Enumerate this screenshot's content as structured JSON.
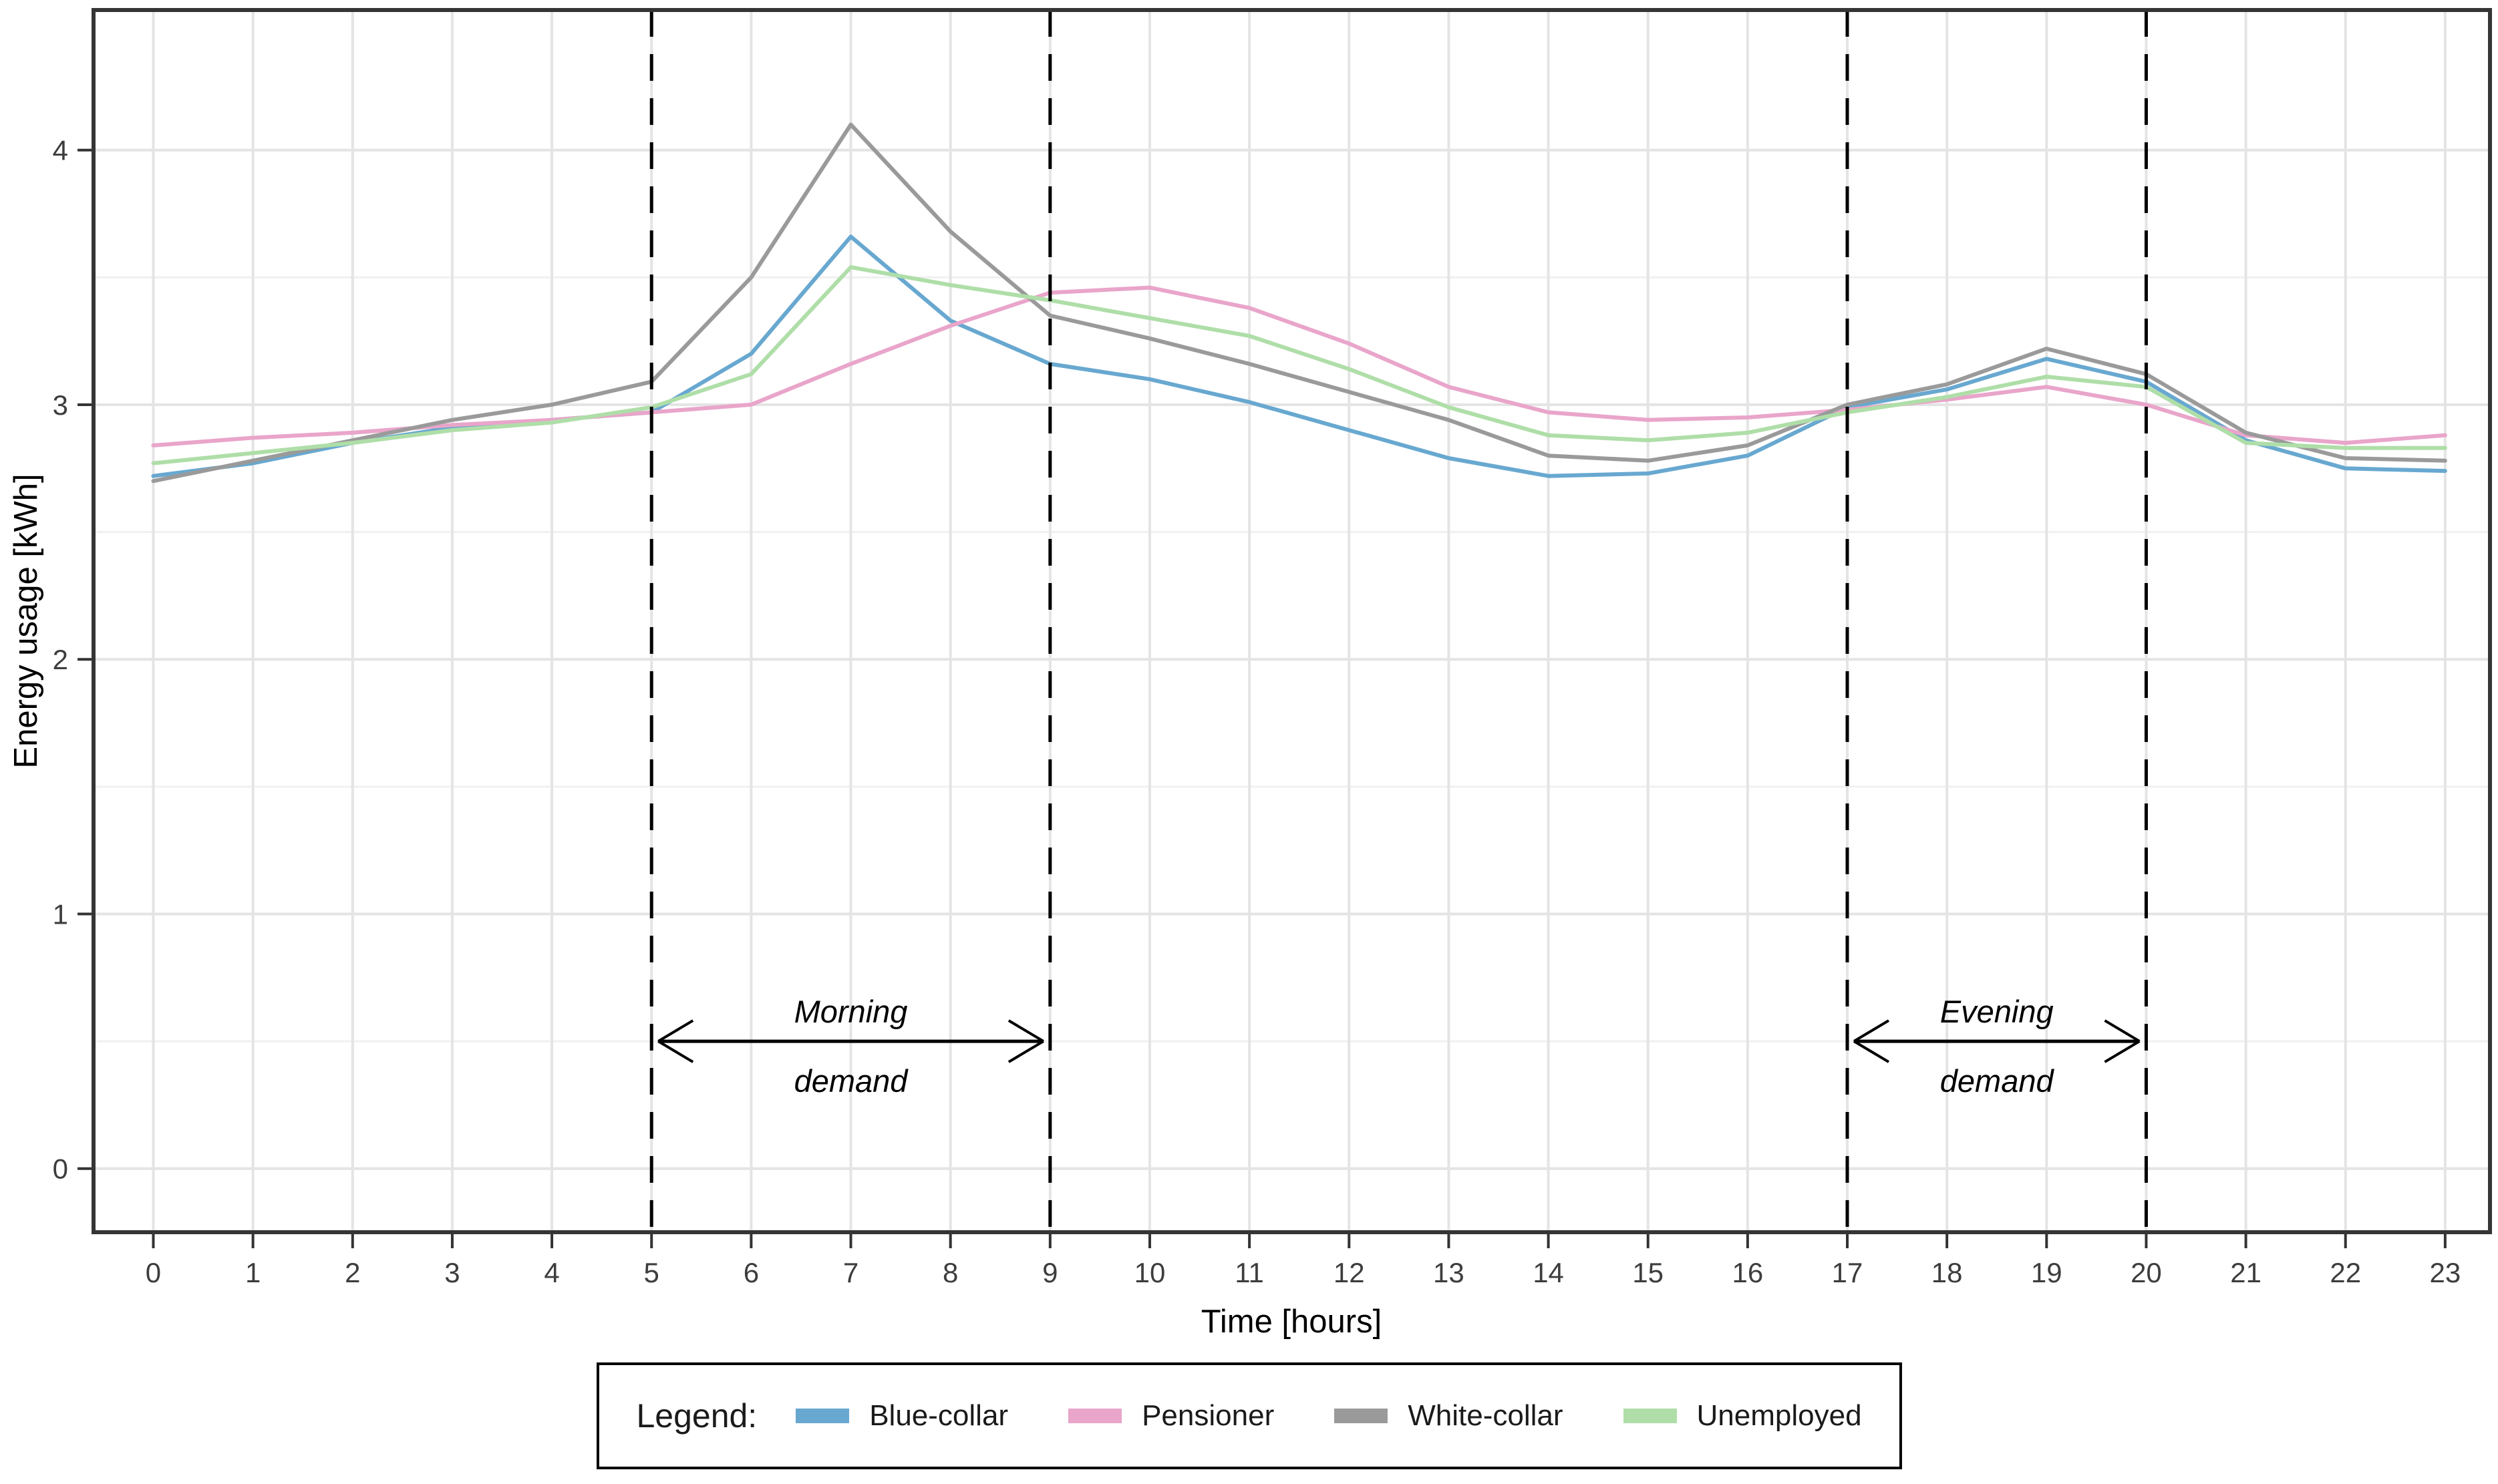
{
  "chart_data": {
    "type": "line",
    "title": "",
    "xlabel": "Time [hours]",
    "ylabel": "Energy usage [kWh]",
    "x": [
      0,
      1,
      2,
      3,
      4,
      5,
      6,
      7,
      8,
      9,
      10,
      11,
      12,
      13,
      14,
      15,
      16,
      17,
      18,
      19,
      20,
      21,
      22,
      23
    ],
    "x_tick_labels": [
      "0",
      "1",
      "2",
      "3",
      "4",
      "5",
      "6",
      "7",
      "8",
      "9",
      "10",
      "11",
      "12",
      "13",
      "14",
      "15",
      "16",
      "17",
      "18",
      "19",
      "20",
      "21",
      "22",
      "23"
    ],
    "y_ticks": [
      0,
      1,
      2,
      3,
      4
    ],
    "y_minor_ticks": [
      0.5,
      1.5,
      2.5,
      3.5
    ],
    "xlim": [
      -0.6,
      23.45
    ],
    "ylim": [
      -0.25,
      4.55
    ],
    "grid": "major-and-minor, light gray on white, black panel border",
    "legend_position": "bottom-center",
    "series": [
      {
        "name": "Blue-collar",
        "color": "#68A8D0",
        "values": [
          2.72,
          2.77,
          2.85,
          2.91,
          2.94,
          2.97,
          3.2,
          3.66,
          3.33,
          3.16,
          3.1,
          3.01,
          2.9,
          2.79,
          2.72,
          2.73,
          2.8,
          2.99,
          3.06,
          3.18,
          3.09,
          2.86,
          2.75,
          2.74
        ]
      },
      {
        "name": "Pensioner",
        "color": "#E9A5CA",
        "values": [
          2.84,
          2.87,
          2.89,
          2.92,
          2.94,
          2.97,
          3.0,
          3.16,
          3.31,
          3.44,
          3.46,
          3.38,
          3.24,
          3.07,
          2.97,
          2.94,
          2.95,
          2.98,
          3.02,
          3.07,
          3.0,
          2.88,
          2.85,
          2.88
        ]
      },
      {
        "name": "White-collar",
        "color": "#9A9A9A",
        "values": [
          2.7,
          2.78,
          2.86,
          2.94,
          3.0,
          3.09,
          3.5,
          4.1,
          3.68,
          3.35,
          3.26,
          3.16,
          3.05,
          2.94,
          2.8,
          2.78,
          2.84,
          3.0,
          3.08,
          3.22,
          3.12,
          2.89,
          2.79,
          2.78
        ]
      },
      {
        "name": "Unemployed",
        "color": "#AFDEA8",
        "values": [
          2.77,
          2.81,
          2.85,
          2.9,
          2.93,
          2.99,
          3.12,
          3.54,
          3.47,
          3.41,
          3.34,
          3.27,
          3.14,
          2.99,
          2.88,
          2.86,
          2.89,
          2.97,
          3.03,
          3.11,
          3.07,
          2.85,
          2.83,
          2.83
        ]
      }
    ],
    "vlines": {
      "x": [
        5,
        9,
        17,
        20
      ],
      "style": "dashed",
      "color": "#000000"
    },
    "annotations": [
      {
        "label_line1": "Morning",
        "label_line2": "demand",
        "x_from": 5,
        "x_to": 9,
        "y": 0.5
      },
      {
        "label_line1": "Evening",
        "label_line2": "demand",
        "x_from": 17,
        "x_to": 20,
        "y": 0.5
      }
    ]
  },
  "legend": {
    "title": "Legend:",
    "items": [
      {
        "label": "Blue-collar",
        "color": "#68A8D0"
      },
      {
        "label": "Pensioner",
        "color": "#E9A5CA"
      },
      {
        "label": "White-collar",
        "color": "#9A9A9A"
      },
      {
        "label": "Unemployed",
        "color": "#AFDEA8"
      }
    ]
  },
  "colors": {
    "panel_border": "#353535",
    "grid_major": "#E4E4E4",
    "grid_minor": "#F0F0F0",
    "tick": "#333333",
    "tick_label": "#3d3d3d"
  }
}
